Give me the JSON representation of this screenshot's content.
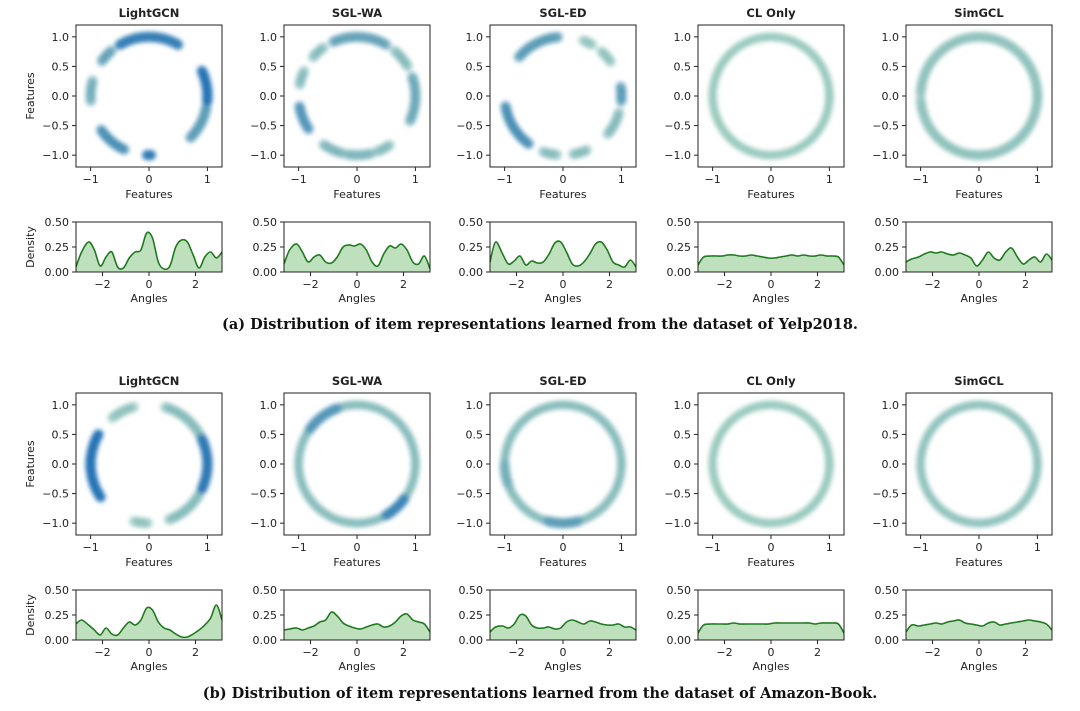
{
  "figure": {
    "captions": {
      "a": "(a) Distribution of item representations learned from the dataset of Yelp2018.",
      "b": "(b) Distribution of item representations learned from the dataset of Amazon-Book."
    }
  },
  "chart_data": [
    {
      "type": "scatter",
      "panel": "a",
      "title": "LightGCN",
      "xlabel": "Features",
      "ylabel": "Features",
      "xlim": [
        -1.25,
        1.25
      ],
      "ylim": [
        -1.2,
        1.2
      ],
      "xticks": [
        -1,
        0,
        1
      ],
      "yticks": [
        -1.0,
        -0.5,
        0.0,
        0.5,
        1.0
      ],
      "clusters_deg": [
        [
          60,
          120,
          0.85
        ],
        [
          130,
          145,
          0.55
        ],
        [
          165,
          185,
          0.45
        ],
        [
          215,
          245,
          0.7
        ],
        [
          268,
          272,
          0.9
        ],
        [
          315,
          350,
          0.6
        ],
        [
          355,
          25,
          0.95
        ]
      ],
      "density": {
        "xlabel": "Angles",
        "ylabel": "Density",
        "xlim": [
          -3.14,
          3.14
        ],
        "ylim": [
          0,
          0.5
        ],
        "xticks": [
          -2,
          0,
          2
        ],
        "yticks": [
          0.0,
          0.25,
          0.5
        ],
        "x": [
          -3.14,
          -2.9,
          -2.6,
          -2.35,
          -2.1,
          -1.85,
          -1.6,
          -1.35,
          -1.1,
          -0.85,
          -0.6,
          -0.35,
          -0.1,
          0.15,
          0.4,
          0.65,
          0.9,
          1.15,
          1.4,
          1.65,
          1.9,
          2.15,
          2.4,
          2.65,
          2.9,
          3.14
        ],
        "y": [
          0.05,
          0.2,
          0.3,
          0.22,
          0.06,
          0.15,
          0.2,
          0.05,
          0.04,
          0.14,
          0.2,
          0.22,
          0.39,
          0.34,
          0.1,
          0.03,
          0.06,
          0.25,
          0.32,
          0.3,
          0.17,
          0.04,
          0.15,
          0.2,
          0.14,
          0.2
        ]
      }
    },
    {
      "type": "scatter",
      "panel": "a",
      "title": "SGL-WA",
      "xlabel": "Features",
      "ylabel": "",
      "xlim": [
        -1.25,
        1.25
      ],
      "ylim": [
        -1.2,
        1.2
      ],
      "xticks": [
        -1,
        0,
        1
      ],
      "yticks": [
        -1.0,
        -0.5,
        0.0,
        0.5,
        1.0
      ],
      "clusters_deg": [
        [
          60,
          115,
          0.55
        ],
        [
          125,
          140,
          0.35
        ],
        [
          155,
          170,
          0.35
        ],
        [
          190,
          215,
          0.65
        ],
        [
          235,
          255,
          0.4
        ],
        [
          260,
          285,
          0.4
        ],
        [
          290,
          305,
          0.35
        ],
        [
          335,
          20,
          0.5
        ],
        [
          30,
          50,
          0.35
        ]
      ],
      "density": {
        "xlabel": "Angles",
        "ylabel": "",
        "xlim": [
          -3.14,
          3.14
        ],
        "ylim": [
          0,
          0.5
        ],
        "xticks": [
          -2,
          0,
          2
        ],
        "yticks": [
          0.0,
          0.25,
          0.5
        ],
        "x": [
          -3.14,
          -2.9,
          -2.6,
          -2.35,
          -2.1,
          -1.85,
          -1.6,
          -1.35,
          -1.1,
          -0.85,
          -0.6,
          -0.35,
          -0.1,
          0.15,
          0.4,
          0.65,
          0.9,
          1.15,
          1.4,
          1.65,
          1.9,
          2.15,
          2.4,
          2.65,
          2.9,
          3.14
        ],
        "y": [
          0.08,
          0.22,
          0.28,
          0.2,
          0.1,
          0.15,
          0.17,
          0.1,
          0.09,
          0.15,
          0.25,
          0.27,
          0.26,
          0.28,
          0.22,
          0.1,
          0.06,
          0.18,
          0.26,
          0.24,
          0.28,
          0.22,
          0.1,
          0.08,
          0.16,
          0.03
        ]
      }
    },
    {
      "type": "scatter",
      "panel": "a",
      "title": "SGL-ED",
      "xlabel": "Features",
      "ylabel": "",
      "xlim": [
        -1.25,
        1.25
      ],
      "ylim": [
        -1.2,
        1.2
      ],
      "xticks": [
        -1,
        0,
        1
      ],
      "yticks": [
        -1.0,
        -0.5,
        0.0,
        0.5,
        1.0
      ],
      "clusters_deg": [
        [
          95,
          140,
          0.6
        ],
        [
          190,
          235,
          0.7
        ],
        [
          250,
          265,
          0.35
        ],
        [
          280,
          295,
          0.35
        ],
        [
          320,
          345,
          0.35
        ],
        [
          355,
          10,
          0.6
        ],
        [
          35,
          50,
          0.3
        ],
        [
          60,
          70,
          0.3
        ]
      ],
      "density": {
        "xlabel": "Angles",
        "ylabel": "",
        "xlim": [
          -3.14,
          3.14
        ],
        "ylim": [
          0,
          0.5
        ],
        "xticks": [
          -2,
          0,
          2
        ],
        "yticks": [
          0.0,
          0.25,
          0.5
        ],
        "x": [
          -3.14,
          -2.9,
          -2.6,
          -2.35,
          -2.1,
          -1.85,
          -1.6,
          -1.35,
          -1.1,
          -0.85,
          -0.6,
          -0.35,
          -0.1,
          0.15,
          0.4,
          0.65,
          0.9,
          1.15,
          1.4,
          1.65,
          1.9,
          2.15,
          2.4,
          2.65,
          2.9,
          3.14
        ],
        "y": [
          0.1,
          0.3,
          0.18,
          0.08,
          0.11,
          0.16,
          0.07,
          0.11,
          0.09,
          0.1,
          0.18,
          0.29,
          0.3,
          0.2,
          0.08,
          0.06,
          0.1,
          0.18,
          0.28,
          0.3,
          0.22,
          0.1,
          0.07,
          0.05,
          0.12,
          0.05
        ]
      }
    },
    {
      "type": "scatter",
      "panel": "a",
      "title": "CL Only",
      "xlabel": "Features",
      "ylabel": "",
      "xlim": [
        -1.25,
        1.25
      ],
      "ylim": [
        -1.2,
        1.2
      ],
      "xticks": [
        -1,
        0,
        1
      ],
      "yticks": [
        -1.0,
        -0.5,
        0.0,
        0.5,
        1.0
      ],
      "clusters_deg": [
        [
          0,
          360,
          0.25
        ]
      ],
      "density": {
        "xlabel": "Angles",
        "ylabel": "",
        "xlim": [
          -3.14,
          3.14
        ],
        "ylim": [
          0,
          0.5
        ],
        "xticks": [
          -2,
          0,
          2
        ],
        "yticks": [
          0.0,
          0.25,
          0.5
        ],
        "x": [
          -3.14,
          -2.9,
          -2.6,
          -2.35,
          -2.1,
          -1.85,
          -1.6,
          -1.35,
          -1.1,
          -0.85,
          -0.6,
          -0.35,
          -0.1,
          0.15,
          0.4,
          0.65,
          0.9,
          1.15,
          1.4,
          1.65,
          1.9,
          2.15,
          2.4,
          2.65,
          2.9,
          3.14
        ],
        "y": [
          0.07,
          0.15,
          0.16,
          0.16,
          0.16,
          0.17,
          0.17,
          0.16,
          0.16,
          0.17,
          0.16,
          0.15,
          0.14,
          0.14,
          0.15,
          0.16,
          0.17,
          0.16,
          0.17,
          0.16,
          0.16,
          0.17,
          0.16,
          0.16,
          0.15,
          0.07
        ]
      }
    },
    {
      "type": "scatter",
      "panel": "a",
      "title": "SimGCL",
      "xlabel": "Features",
      "ylabel": "",
      "xlim": [
        -1.25,
        1.25
      ],
      "ylim": [
        -1.2,
        1.2
      ],
      "xticks": [
        -1,
        0,
        1
      ],
      "yticks": [
        -1.0,
        -0.5,
        0.0,
        0.5,
        1.0
      ],
      "clusters_deg": [
        [
          0,
          178,
          0.3
        ],
        [
          184,
          360,
          0.3
        ]
      ],
      "density": {
        "xlabel": "Angles",
        "ylabel": "",
        "xlim": [
          -3.14,
          3.14
        ],
        "ylim": [
          0,
          0.5
        ],
        "xticks": [
          -2,
          0,
          2
        ],
        "yticks": [
          0.0,
          0.25,
          0.5
        ],
        "x": [
          -3.14,
          -2.9,
          -2.6,
          -2.35,
          -2.1,
          -1.85,
          -1.6,
          -1.35,
          -1.1,
          -0.85,
          -0.6,
          -0.35,
          -0.1,
          0.15,
          0.4,
          0.65,
          0.9,
          1.15,
          1.4,
          1.65,
          1.9,
          2.15,
          2.4,
          2.65,
          2.9,
          3.14
        ],
        "y": [
          0.1,
          0.13,
          0.15,
          0.18,
          0.2,
          0.19,
          0.2,
          0.18,
          0.17,
          0.19,
          0.17,
          0.14,
          0.06,
          0.12,
          0.2,
          0.14,
          0.12,
          0.2,
          0.24,
          0.15,
          0.08,
          0.12,
          0.15,
          0.1,
          0.18,
          0.12
        ]
      }
    },
    {
      "type": "scatter",
      "panel": "b",
      "title": "LightGCN",
      "xlabel": "Features",
      "ylabel": "Features",
      "xlim": [
        -1.25,
        1.25
      ],
      "ylim": [
        -1.2,
        1.2
      ],
      "xticks": [
        -1,
        0,
        1
      ],
      "yticks": [
        -1.0,
        -0.5,
        0.0,
        0.5,
        1.0
      ],
      "clusters_deg": [
        [
          20,
          75,
          0.35
        ],
        [
          105,
          130,
          0.3
        ],
        [
          150,
          215,
          0.95
        ],
        [
          255,
          270,
          0.3
        ],
        [
          290,
          330,
          0.35
        ],
        [
          335,
          25,
          0.9
        ]
      ],
      "density": {
        "xlabel": "Angles",
        "ylabel": "Density",
        "xlim": [
          -3.14,
          3.14
        ],
        "ylim": [
          0,
          0.5
        ],
        "xticks": [
          -2,
          0,
          2
        ],
        "yticks": [
          0.0,
          0.25,
          0.5
        ],
        "x": [
          -3.14,
          -2.9,
          -2.6,
          -2.35,
          -2.1,
          -1.85,
          -1.6,
          -1.35,
          -1.1,
          -0.85,
          -0.6,
          -0.35,
          -0.1,
          0.15,
          0.4,
          0.65,
          0.9,
          1.15,
          1.4,
          1.65,
          1.9,
          2.15,
          2.4,
          2.65,
          2.9,
          3.14
        ],
        "y": [
          0.16,
          0.2,
          0.15,
          0.1,
          0.05,
          0.12,
          0.06,
          0.05,
          0.12,
          0.18,
          0.15,
          0.2,
          0.32,
          0.3,
          0.18,
          0.12,
          0.1,
          0.06,
          0.03,
          0.03,
          0.06,
          0.1,
          0.15,
          0.22,
          0.35,
          0.2
        ]
      }
    },
    {
      "type": "scatter",
      "panel": "b",
      "title": "SGL-WA",
      "xlabel": "Features",
      "ylabel": "",
      "xlim": [
        -1.25,
        1.25
      ],
      "ylim": [
        -1.2,
        1.2
      ],
      "xticks": [
        -1,
        0,
        1
      ],
      "yticks": [
        -1.0,
        -0.5,
        0.0,
        0.5,
        1.0
      ],
      "clusters_deg": [
        [
          0,
          360,
          0.35
        ],
        [
          110,
          145,
          0.65
        ],
        [
          300,
          325,
          0.8
        ]
      ],
      "density": {
        "xlabel": "Angles",
        "ylabel": "",
        "xlim": [
          -3.14,
          3.14
        ],
        "ylim": [
          0,
          0.5
        ],
        "xticks": [
          -2,
          0,
          2
        ],
        "yticks": [
          0.0,
          0.25,
          0.5
        ],
        "x": [
          -3.14,
          -2.9,
          -2.6,
          -2.35,
          -2.1,
          -1.85,
          -1.6,
          -1.35,
          -1.1,
          -0.85,
          -0.6,
          -0.35,
          -0.1,
          0.15,
          0.4,
          0.65,
          0.9,
          1.15,
          1.4,
          1.65,
          1.9,
          2.15,
          2.4,
          2.65,
          2.9,
          3.14
        ],
        "y": [
          0.1,
          0.11,
          0.12,
          0.1,
          0.12,
          0.14,
          0.18,
          0.2,
          0.28,
          0.24,
          0.17,
          0.14,
          0.12,
          0.11,
          0.13,
          0.15,
          0.16,
          0.13,
          0.14,
          0.18,
          0.24,
          0.26,
          0.2,
          0.18,
          0.16,
          0.08
        ]
      }
    },
    {
      "type": "scatter",
      "panel": "b",
      "title": "SGL-ED",
      "xlabel": "Features",
      "ylabel": "",
      "xlim": [
        -1.25,
        1.25
      ],
      "ylim": [
        -1.2,
        1.2
      ],
      "xticks": [
        -1,
        0,
        1
      ],
      "yticks": [
        -1.0,
        -0.5,
        0.0,
        0.5,
        1.0
      ],
      "clusters_deg": [
        [
          0,
          360,
          0.35
        ],
        [
          255,
          285,
          0.6
        ],
        [
          180,
          200,
          0.45
        ]
      ],
      "density": {
        "xlabel": "Angles",
        "ylabel": "",
        "xlim": [
          -3.14,
          3.14
        ],
        "ylim": [
          0,
          0.5
        ],
        "xticks": [
          -2,
          0,
          2
        ],
        "yticks": [
          0.0,
          0.25,
          0.5
        ],
        "x": [
          -3.14,
          -2.9,
          -2.6,
          -2.35,
          -2.1,
          -1.85,
          -1.6,
          -1.35,
          -1.1,
          -0.85,
          -0.6,
          -0.35,
          -0.1,
          0.15,
          0.4,
          0.65,
          0.9,
          1.15,
          1.4,
          1.65,
          1.9,
          2.15,
          2.4,
          2.65,
          2.9,
          3.14
        ],
        "y": [
          0.08,
          0.13,
          0.14,
          0.12,
          0.16,
          0.25,
          0.24,
          0.15,
          0.12,
          0.12,
          0.13,
          0.11,
          0.12,
          0.18,
          0.2,
          0.18,
          0.16,
          0.19,
          0.18,
          0.16,
          0.15,
          0.15,
          0.16,
          0.13,
          0.13,
          0.1
        ]
      }
    },
    {
      "type": "scatter",
      "panel": "b",
      "title": "CL Only",
      "xlabel": "Features",
      "ylabel": "",
      "xlim": [
        -1.25,
        1.25
      ],
      "ylim": [
        -1.2,
        1.2
      ],
      "xticks": [
        -1,
        0,
        1
      ],
      "yticks": [
        -1.0,
        -0.5,
        0.0,
        0.5,
        1.0
      ],
      "clusters_deg": [
        [
          0,
          360,
          0.25
        ]
      ],
      "density": {
        "xlabel": "Angles",
        "ylabel": "",
        "xlim": [
          -3.14,
          3.14
        ],
        "ylim": [
          0,
          0.5
        ],
        "xticks": [
          -2,
          0,
          2
        ],
        "yticks": [
          0.0,
          0.25,
          0.5
        ],
        "x": [
          -3.14,
          -2.9,
          -2.6,
          -2.35,
          -2.1,
          -1.85,
          -1.6,
          -1.35,
          -1.1,
          -0.85,
          -0.6,
          -0.35,
          -0.1,
          0.15,
          0.4,
          0.65,
          0.9,
          1.15,
          1.4,
          1.65,
          1.9,
          2.15,
          2.4,
          2.65,
          2.9,
          3.14
        ],
        "y": [
          0.07,
          0.15,
          0.16,
          0.16,
          0.16,
          0.16,
          0.17,
          0.16,
          0.16,
          0.16,
          0.16,
          0.16,
          0.16,
          0.17,
          0.17,
          0.17,
          0.17,
          0.17,
          0.17,
          0.17,
          0.16,
          0.17,
          0.17,
          0.17,
          0.16,
          0.07
        ]
      }
    },
    {
      "type": "scatter",
      "panel": "b",
      "title": "SimGCL",
      "xlabel": "Features",
      "ylabel": "",
      "xlim": [
        -1.25,
        1.25
      ],
      "ylim": [
        -1.2,
        1.2
      ],
      "xticks": [
        -1,
        0,
        1
      ],
      "yticks": [
        -1.0,
        -0.5,
        0.0,
        0.5,
        1.0
      ],
      "clusters_deg": [
        [
          0,
          360,
          0.3
        ]
      ],
      "density": {
        "xlabel": "Angles",
        "ylabel": "",
        "xlim": [
          -3.14,
          3.14
        ],
        "ylim": [
          0,
          0.5
        ],
        "xticks": [
          -2,
          0,
          2
        ],
        "yticks": [
          0.0,
          0.25,
          0.5
        ],
        "x": [
          -3.14,
          -2.9,
          -2.6,
          -2.35,
          -2.1,
          -1.85,
          -1.6,
          -1.35,
          -1.1,
          -0.85,
          -0.6,
          -0.35,
          -0.1,
          0.15,
          0.4,
          0.65,
          0.9,
          1.15,
          1.4,
          1.65,
          1.9,
          2.15,
          2.4,
          2.65,
          2.9,
          3.14
        ],
        "y": [
          0.08,
          0.15,
          0.14,
          0.15,
          0.16,
          0.17,
          0.16,
          0.18,
          0.19,
          0.2,
          0.17,
          0.16,
          0.15,
          0.14,
          0.17,
          0.18,
          0.15,
          0.16,
          0.17,
          0.18,
          0.19,
          0.2,
          0.19,
          0.18,
          0.16,
          0.1
        ]
      }
    }
  ]
}
